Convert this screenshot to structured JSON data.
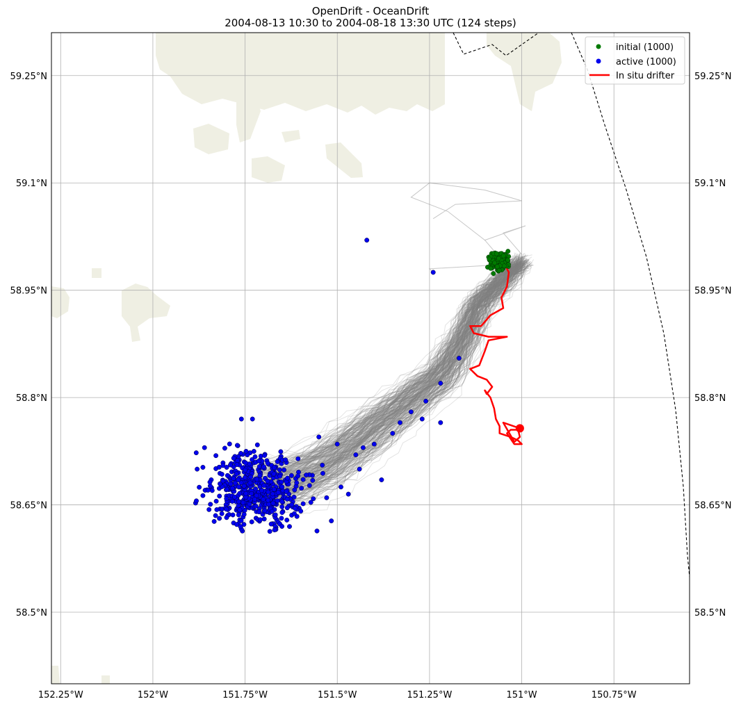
{
  "chart_data": {
    "type": "scatter",
    "title": "OpenDrift - OceanDrift",
    "subtitle": "2004-08-13 10:30 to 2004-08-18 13:30 UTC (124 steps)",
    "xlim": [
      -152.275,
      -150.545
    ],
    "ylim": [
      58.4,
      59.31
    ],
    "x_ticks": [
      -152.25,
      -152.0,
      -151.75,
      -151.5,
      -151.25,
      -151.0,
      -150.75
    ],
    "x_tick_labels": [
      "152.25°W",
      "152°W",
      "151.75°W",
      "151.5°W",
      "151.25°W",
      "151°W",
      "150.75°W"
    ],
    "y_ticks": [
      58.5,
      58.65,
      58.8,
      58.95,
      59.1,
      59.25
    ],
    "y_tick_labels": [
      "58.5°N",
      "58.65°N",
      "58.8°N",
      "58.95°N",
      "59.1°N",
      "59.25°N"
    ],
    "grid": true,
    "legend_position": "top-right",
    "colors": {
      "initial": "#007a00",
      "active": "#0000ee",
      "drifter": "#ff0000",
      "trajectories": "#808080",
      "land": "#efefe3",
      "grid": "#b0b0b0"
    },
    "series": [
      {
        "name": "initial (1000)",
        "kind": "points",
        "center": [
          -151.063,
          58.99
        ],
        "spread": [
          0.012,
          0.006
        ],
        "count": 1000
      },
      {
        "name": "active (1000)",
        "kind": "points",
        "center": [
          -151.73,
          58.675
        ],
        "spread": [
          0.06,
          0.025
        ],
        "count": 1000,
        "outliers": [
          [
            -151.42,
            59.02
          ],
          [
            -151.24,
            58.975
          ],
          [
            -151.17,
            58.855
          ],
          [
            -151.22,
            58.82
          ],
          [
            -151.26,
            58.795
          ],
          [
            -151.3,
            58.78
          ],
          [
            -151.33,
            58.765
          ],
          [
            -151.27,
            58.77
          ],
          [
            -151.22,
            58.765
          ],
          [
            -151.35,
            58.75
          ],
          [
            -151.4,
            58.735
          ],
          [
            -151.43,
            58.73
          ],
          [
            -151.45,
            58.72
          ],
          [
            -151.5,
            58.735
          ],
          [
            -151.55,
            58.745
          ],
          [
            -151.44,
            58.7
          ],
          [
            -151.38,
            58.685
          ],
          [
            -151.49,
            58.675
          ],
          [
            -151.47,
            58.665
          ],
          [
            -151.76,
            58.77
          ],
          [
            -151.73,
            58.77
          ],
          [
            -151.86,
            58.73
          ],
          [
            -151.88,
            58.7
          ],
          [
            -151.83,
            58.635
          ],
          [
            -151.67,
            58.615
          ],
          [
            -151.65,
            58.62
          ]
        ]
      },
      {
        "name": "In situ drifter",
        "kind": "line",
        "points": [
          [
            -151.05,
            58.99
          ],
          [
            -151.035,
            58.975
          ],
          [
            -151.04,
            58.955
          ],
          [
            -151.055,
            58.94
          ],
          [
            -151.05,
            58.925
          ],
          [
            -151.085,
            58.915
          ],
          [
            -151.11,
            58.9
          ],
          [
            -151.14,
            58.9
          ],
          [
            -151.13,
            58.89
          ],
          [
            -151.09,
            58.885
          ],
          [
            -151.04,
            58.885
          ],
          [
            -151.09,
            58.88
          ],
          [
            -151.1,
            58.865
          ],
          [
            -151.115,
            58.845
          ],
          [
            -151.14,
            58.84
          ],
          [
            -151.12,
            58.83
          ],
          [
            -151.095,
            58.825
          ],
          [
            -151.08,
            58.815
          ],
          [
            -151.095,
            58.805
          ],
          [
            -151.1,
            58.81
          ],
          [
            -151.085,
            58.8
          ],
          [
            -151.075,
            58.785
          ],
          [
            -151.07,
            58.77
          ],
          [
            -151.06,
            58.76
          ],
          [
            -151.06,
            58.75
          ],
          [
            -151.03,
            58.745
          ],
          [
            -151.01,
            58.74
          ],
          [
            -151.0,
            58.735
          ],
          [
            -151.02,
            58.735
          ],
          [
            -151.04,
            58.75
          ],
          [
            -151.03,
            58.755
          ],
          [
            -151.01,
            58.755
          ],
          [
            -151.005,
            58.745
          ],
          [
            -151.02,
            58.738
          ],
          [
            -151.05,
            58.765
          ],
          [
            -151.005,
            58.757
          ]
        ]
      }
    ],
    "legend": [
      "initial (1000)",
      "active (1000)",
      "In situ drifter"
    ]
  }
}
